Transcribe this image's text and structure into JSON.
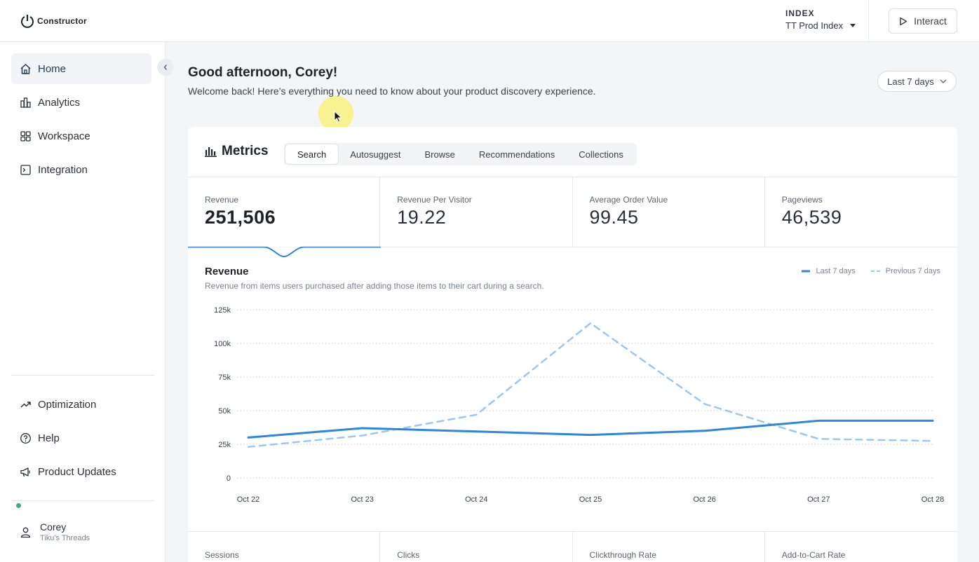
{
  "app": {
    "logo_text": "Constructor",
    "index_label": "INDEX",
    "index_value": "TT Prod Index",
    "interact_label": "Interact"
  },
  "sidebar": {
    "items": [
      {
        "label": "Home",
        "icon": "home-icon"
      },
      {
        "label": "Analytics",
        "icon": "analytics-icon"
      },
      {
        "label": "Workspace",
        "icon": "workspace-icon"
      },
      {
        "label": "Integration",
        "icon": "integration-icon"
      }
    ],
    "bottom_items": [
      {
        "label": "Optimization",
        "icon": "trending-up-icon"
      },
      {
        "label": "Help",
        "icon": "help-icon"
      },
      {
        "label": "Product Updates",
        "icon": "megaphone-icon"
      }
    ],
    "user": {
      "name": "Corey",
      "org": "Tiku's Threads"
    }
  },
  "header": {
    "greeting": "Good afternoon, Corey!",
    "welcome": "Welcome back! Here’s everything you need to know about your product discovery experience.",
    "range_label": "Last 7 days"
  },
  "metrics": {
    "title": "Metrics",
    "tabs": [
      "Search",
      "Autosuggest",
      "Browse",
      "Recommendations",
      "Collections"
    ],
    "active_tab": "Search",
    "kpis": [
      {
        "label": "Revenue",
        "value": "251,506"
      },
      {
        "label": "Revenue Per Visitor",
        "value": "19.22"
      },
      {
        "label": "Average Order Value",
        "value": "99.45"
      },
      {
        "label": "Pageviews",
        "value": "46,539"
      }
    ],
    "bottom_kpis": [
      {
        "label": "Sessions"
      },
      {
        "label": "Clicks"
      },
      {
        "label": "Clickthrough Rate"
      },
      {
        "label": "Add-to-Cart Rate"
      }
    ]
  },
  "chart": {
    "title": "Revenue",
    "subtitle": "Revenue from items users purchased after adding those items to their cart during a search.",
    "legend": [
      "Last 7 days",
      "Previous 7 days"
    ]
  },
  "chart_data": {
    "type": "line",
    "x": [
      "Oct 22",
      "Oct 23",
      "Oct 24",
      "Oct 25",
      "Oct 26",
      "Oct 27",
      "Oct 28"
    ],
    "y_ticks": [
      "0",
      "25k",
      "50k",
      "75k",
      "100k",
      "125k"
    ],
    "ylim": [
      0,
      125000
    ],
    "series": [
      {
        "name": "Last 7 days",
        "style": "solid",
        "color": "#2e86de",
        "values": [
          30000,
          37000,
          34500,
          32000,
          35000,
          42500,
          42500
        ]
      },
      {
        "name": "Previous 7 days",
        "style": "dashed",
        "color": "#9cc8ef",
        "values": [
          23000,
          31500,
          47000,
          115000,
          55000,
          29000,
          27500
        ]
      }
    ],
    "grid": true,
    "legend_position": "top-right"
  },
  "colors": {
    "accent": "#2e86de",
    "accent_light": "#9cc8ef",
    "status_dot": "#3bb07d"
  }
}
